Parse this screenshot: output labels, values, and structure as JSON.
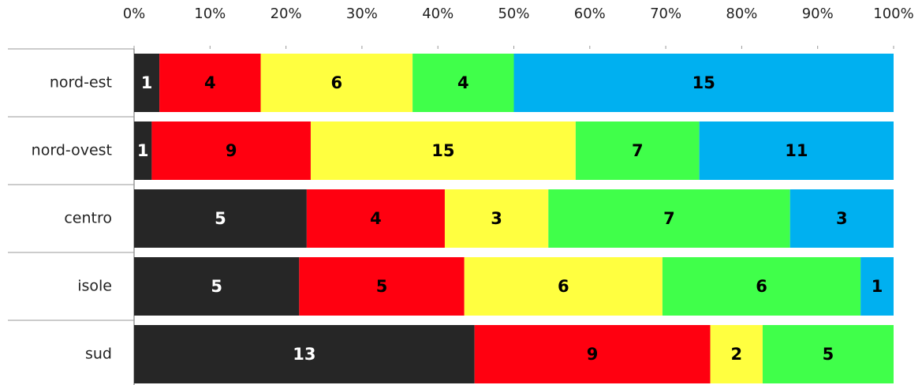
{
  "chart_data": {
    "type": "bar",
    "orientation": "horizontal",
    "stacking": "percent",
    "categories": [
      "nord-est",
      "nord-ovest",
      "centro",
      "isole",
      "sud"
    ],
    "series": [
      {
        "color": "#262626",
        "label_color": "#ffffff",
        "values": [
          1,
          1,
          5,
          5,
          13
        ]
      },
      {
        "color": "#ff0010",
        "label_color": "#000000",
        "values": [
          4,
          9,
          4,
          5,
          9
        ]
      },
      {
        "color": "#ffff40",
        "label_color": "#000000",
        "values": [
          6,
          15,
          3,
          6,
          2
        ]
      },
      {
        "color": "#40ff4a",
        "label_color": "#000000",
        "values": [
          4,
          7,
          7,
          6,
          5
        ]
      },
      {
        "color": "#00b0f0",
        "label_color": "#000000",
        "values": [
          15,
          11,
          3,
          1,
          null
        ]
      }
    ],
    "xlim": [
      0,
      100
    ],
    "xticks": [
      {
        "value": 0,
        "label": "0%"
      },
      {
        "value": 10,
        "label": "10%"
      },
      {
        "value": 20,
        "label": "20%"
      },
      {
        "value": 30,
        "label": "30%"
      },
      {
        "value": 40,
        "label": "40%"
      },
      {
        "value": 50,
        "label": "50%"
      },
      {
        "value": 60,
        "label": "60%"
      },
      {
        "value": 70,
        "label": "70%"
      },
      {
        "value": 80,
        "label": "80%"
      },
      {
        "value": 90,
        "label": "90%"
      },
      {
        "value": 100,
        "label": "100%"
      }
    ]
  }
}
